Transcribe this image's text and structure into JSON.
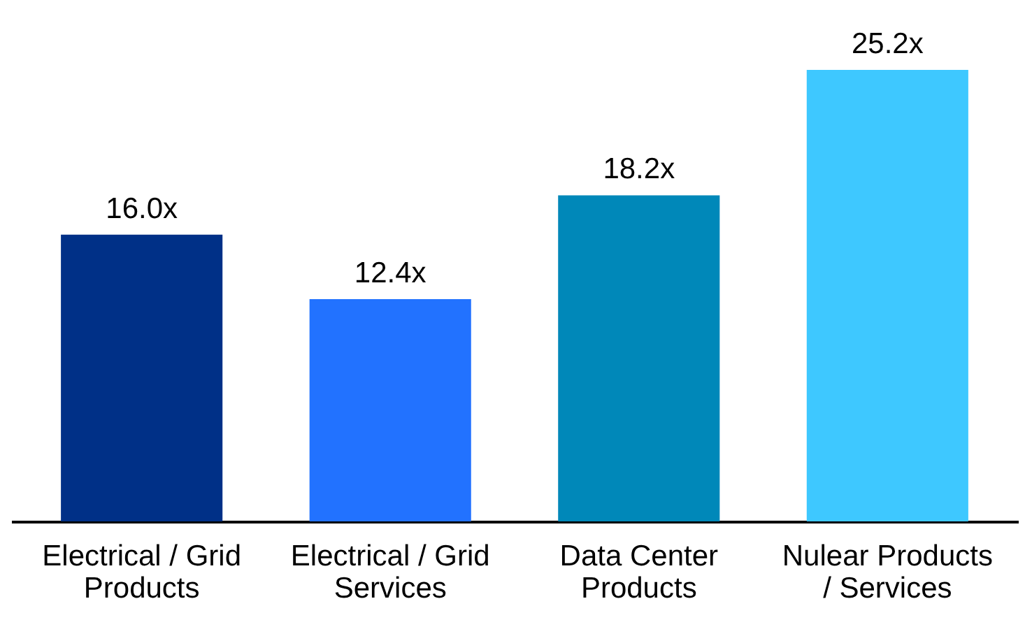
{
  "chart_data": {
    "type": "bar",
    "categories": [
      "Electrical / Grid Products",
      "Electrical / Grid Services",
      "Data Center Products",
      "Nulear Products / Services"
    ],
    "values": [
      16.0,
      12.4,
      18.2,
      25.2
    ],
    "colors": [
      "#003087",
      "#2272ff",
      "#0088b9",
      "#3ec8ff"
    ],
    "value_labels": [
      "16.0x",
      "12.4x",
      "18.2x",
      "25.2x"
    ],
    "grid": false,
    "legend": false
  }
}
